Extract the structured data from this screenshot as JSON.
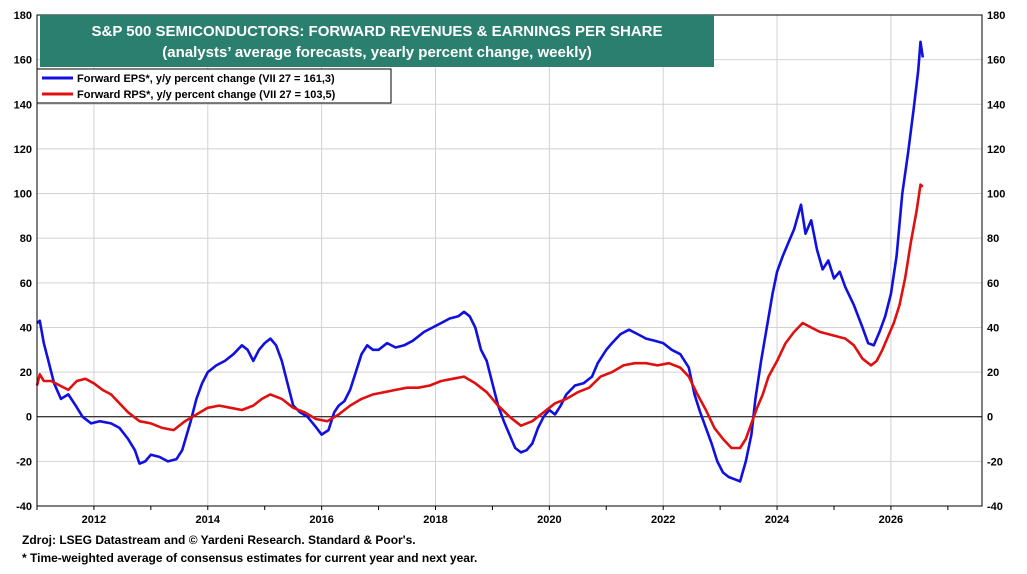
{
  "chart_data": {
    "type": "line",
    "title": "S&P 500 SEMICONDUCTORS: FORWARD REVENUES & EARNINGS PER SHARE",
    "subtitle": "(analysts’ average forecasts, yearly percent change, weekly)",
    "title_bg_color": "#2a7f6e",
    "xlim": [
      2011.0,
      2027.6
    ],
    "ylim": [
      -40,
      180
    ],
    "x_ticks": [
      2012,
      2014,
      2016,
      2018,
      2020,
      2022,
      2024,
      2026
    ],
    "x_tick_labels": [
      "2012",
      "2014",
      "2016",
      "2018",
      "2020",
      "2022",
      "2024",
      "2026"
    ],
    "y_ticks": [
      -40,
      -20,
      0,
      20,
      40,
      60,
      80,
      100,
      120,
      140,
      160,
      180
    ],
    "y_tick_labels": [
      "-40",
      "-20",
      "0",
      "20",
      "40",
      "60",
      "80",
      "100",
      "120",
      "140",
      "160",
      "180"
    ],
    "grid": true,
    "legend_position": "top-left",
    "series": [
      {
        "name": "Forward EPS*, y/y percent change (VII 27 = 161,3)",
        "color": "#1010e0",
        "points": [
          [
            2011.0,
            42
          ],
          [
            2011.05,
            43
          ],
          [
            2011.12,
            33
          ],
          [
            2011.2,
            25
          ],
          [
            2011.3,
            15
          ],
          [
            2011.42,
            8
          ],
          [
            2011.55,
            10
          ],
          [
            2011.68,
            5
          ],
          [
            2011.8,
            0
          ],
          [
            2011.95,
            -3
          ],
          [
            2012.1,
            -2
          ],
          [
            2012.3,
            -3
          ],
          [
            2012.45,
            -5
          ],
          [
            2012.6,
            -10
          ],
          [
            2012.72,
            -15
          ],
          [
            2012.8,
            -21
          ],
          [
            2012.9,
            -20
          ],
          [
            2013.0,
            -17
          ],
          [
            2013.15,
            -18
          ],
          [
            2013.3,
            -20
          ],
          [
            2013.45,
            -19
          ],
          [
            2013.55,
            -15
          ],
          [
            2013.7,
            -2
          ],
          [
            2013.8,
            8
          ],
          [
            2013.9,
            15
          ],
          [
            2014.0,
            20
          ],
          [
            2014.15,
            23
          ],
          [
            2014.3,
            25
          ],
          [
            2014.45,
            28
          ],
          [
            2014.6,
            32
          ],
          [
            2014.7,
            30
          ],
          [
            2014.8,
            25
          ],
          [
            2014.9,
            30
          ],
          [
            2015.0,
            33
          ],
          [
            2015.1,
            35
          ],
          [
            2015.2,
            32
          ],
          [
            2015.3,
            25
          ],
          [
            2015.4,
            15
          ],
          [
            2015.5,
            5
          ],
          [
            2015.62,
            2
          ],
          [
            2015.75,
            0
          ],
          [
            2015.88,
            -4
          ],
          [
            2016.0,
            -8
          ],
          [
            2016.12,
            -6
          ],
          [
            2016.22,
            2
          ],
          [
            2016.3,
            5
          ],
          [
            2016.4,
            7
          ],
          [
            2016.5,
            12
          ],
          [
            2016.6,
            20
          ],
          [
            2016.7,
            28
          ],
          [
            2016.8,
            32
          ],
          [
            2016.9,
            30
          ],
          [
            2017.0,
            30
          ],
          [
            2017.15,
            33
          ],
          [
            2017.3,
            31
          ],
          [
            2017.45,
            32
          ],
          [
            2017.6,
            34
          ],
          [
            2017.8,
            38
          ],
          [
            2017.95,
            40
          ],
          [
            2018.1,
            42
          ],
          [
            2018.25,
            44
          ],
          [
            2018.4,
            45
          ],
          [
            2018.5,
            47
          ],
          [
            2018.6,
            45
          ],
          [
            2018.7,
            40
          ],
          [
            2018.8,
            30
          ],
          [
            2018.9,
            25
          ],
          [
            2019.0,
            15
          ],
          [
            2019.1,
            5
          ],
          [
            2019.2,
            -2
          ],
          [
            2019.3,
            -8
          ],
          [
            2019.4,
            -14
          ],
          [
            2019.5,
            -16
          ],
          [
            2019.6,
            -15
          ],
          [
            2019.7,
            -12
          ],
          [
            2019.8,
            -5
          ],
          [
            2019.9,
            0
          ],
          [
            2020.0,
            3
          ],
          [
            2020.1,
            1
          ],
          [
            2020.2,
            5
          ],
          [
            2020.3,
            10
          ],
          [
            2020.45,
            14
          ],
          [
            2020.6,
            15
          ],
          [
            2020.75,
            18
          ],
          [
            2020.85,
            24
          ],
          [
            2021.0,
            30
          ],
          [
            2021.1,
            33
          ],
          [
            2021.25,
            37
          ],
          [
            2021.4,
            39
          ],
          [
            2021.55,
            37
          ],
          [
            2021.7,
            35
          ],
          [
            2021.85,
            34
          ],
          [
            2022.0,
            33
          ],
          [
            2022.15,
            30
          ],
          [
            2022.3,
            28
          ],
          [
            2022.45,
            22
          ],
          [
            2022.55,
            10
          ],
          [
            2022.65,
            2
          ],
          [
            2022.75,
            -5
          ],
          [
            2022.85,
            -12
          ],
          [
            2022.95,
            -20
          ],
          [
            2023.05,
            -25
          ],
          [
            2023.15,
            -27
          ],
          [
            2023.25,
            -28
          ],
          [
            2023.35,
            -29
          ],
          [
            2023.45,
            -20
          ],
          [
            2023.55,
            -8
          ],
          [
            2023.62,
            8
          ],
          [
            2023.72,
            25
          ],
          [
            2023.82,
            40
          ],
          [
            2023.92,
            55
          ],
          [
            2024.0,
            65
          ],
          [
            2024.1,
            72
          ],
          [
            2024.2,
            78
          ],
          [
            2024.3,
            84
          ],
          [
            2024.42,
            95
          ],
          [
            2024.5,
            82
          ],
          [
            2024.6,
            88
          ],
          [
            2024.7,
            75
          ],
          [
            2024.8,
            66
          ],
          [
            2024.9,
            70
          ],
          [
            2025.0,
            62
          ],
          [
            2025.1,
            65
          ],
          [
            2025.2,
            58
          ],
          [
            2025.35,
            50
          ],
          [
            2025.5,
            40
          ],
          [
            2025.6,
            33
          ],
          [
            2025.7,
            32
          ],
          [
            2025.8,
            38
          ],
          [
            2025.9,
            45
          ],
          [
            2026.0,
            55
          ],
          [
            2026.1,
            72
          ],
          [
            2026.2,
            100
          ],
          [
            2026.3,
            118
          ],
          [
            2026.4,
            138
          ],
          [
            2026.48,
            155
          ],
          [
            2026.52,
            168
          ],
          [
            2026.56,
            161
          ]
        ]
      },
      {
        "name": "Forward RPS*, y/y percent change (VII 27 = 103,5)",
        "color": "#e01010",
        "points": [
          [
            2011.0,
            14
          ],
          [
            2011.05,
            19
          ],
          [
            2011.12,
            16
          ],
          [
            2011.25,
            16
          ],
          [
            2011.4,
            14
          ],
          [
            2011.55,
            12
          ],
          [
            2011.7,
            16
          ],
          [
            2011.85,
            17
          ],
          [
            2012.0,
            15
          ],
          [
            2012.15,
            12
          ],
          [
            2012.3,
            10
          ],
          [
            2012.45,
            6
          ],
          [
            2012.6,
            2
          ],
          [
            2012.8,
            -2
          ],
          [
            2013.0,
            -3
          ],
          [
            2013.2,
            -5
          ],
          [
            2013.4,
            -6
          ],
          [
            2013.6,
            -2
          ],
          [
            2013.8,
            1
          ],
          [
            2014.0,
            4
          ],
          [
            2014.2,
            5
          ],
          [
            2014.4,
            4
          ],
          [
            2014.6,
            3
          ],
          [
            2014.8,
            5
          ],
          [
            2014.95,
            8
          ],
          [
            2015.1,
            10
          ],
          [
            2015.3,
            8
          ],
          [
            2015.5,
            4
          ],
          [
            2015.7,
            2
          ],
          [
            2015.9,
            -1
          ],
          [
            2016.1,
            -2
          ],
          [
            2016.3,
            1
          ],
          [
            2016.5,
            5
          ],
          [
            2016.7,
            8
          ],
          [
            2016.9,
            10
          ],
          [
            2017.1,
            11
          ],
          [
            2017.3,
            12
          ],
          [
            2017.5,
            13
          ],
          [
            2017.7,
            13
          ],
          [
            2017.9,
            14
          ],
          [
            2018.1,
            16
          ],
          [
            2018.3,
            17
          ],
          [
            2018.5,
            18
          ],
          [
            2018.7,
            15
          ],
          [
            2018.9,
            11
          ],
          [
            2019.1,
            5
          ],
          [
            2019.3,
            0
          ],
          [
            2019.5,
            -4
          ],
          [
            2019.7,
            -2
          ],
          [
            2019.9,
            2
          ],
          [
            2020.1,
            6
          ],
          [
            2020.3,
            8
          ],
          [
            2020.5,
            11
          ],
          [
            2020.7,
            13
          ],
          [
            2020.9,
            18
          ],
          [
            2021.1,
            20
          ],
          [
            2021.3,
            23
          ],
          [
            2021.5,
            24
          ],
          [
            2021.7,
            24
          ],
          [
            2021.9,
            23
          ],
          [
            2022.1,
            24
          ],
          [
            2022.3,
            22
          ],
          [
            2022.45,
            18
          ],
          [
            2022.6,
            10
          ],
          [
            2022.75,
            3
          ],
          [
            2022.9,
            -5
          ],
          [
            2023.05,
            -10
          ],
          [
            2023.2,
            -14
          ],
          [
            2023.35,
            -14
          ],
          [
            2023.45,
            -10
          ],
          [
            2023.55,
            -3
          ],
          [
            2023.65,
            4
          ],
          [
            2023.75,
            10
          ],
          [
            2023.85,
            18
          ],
          [
            2024.0,
            25
          ],
          [
            2024.15,
            33
          ],
          [
            2024.3,
            38
          ],
          [
            2024.45,
            42
          ],
          [
            2024.6,
            40
          ],
          [
            2024.75,
            38
          ],
          [
            2024.9,
            37
          ],
          [
            2025.05,
            36
          ],
          [
            2025.2,
            35
          ],
          [
            2025.35,
            32
          ],
          [
            2025.5,
            26
          ],
          [
            2025.65,
            23
          ],
          [
            2025.75,
            25
          ],
          [
            2025.85,
            30
          ],
          [
            2025.95,
            36
          ],
          [
            2026.05,
            42
          ],
          [
            2026.15,
            50
          ],
          [
            2026.25,
            62
          ],
          [
            2026.35,
            78
          ],
          [
            2026.45,
            92
          ],
          [
            2026.52,
            104
          ],
          [
            2026.56,
            103
          ]
        ]
      }
    ]
  },
  "footer": {
    "source": "Zdroj: LSEG Datastream and © Yardeni Research. Standard & Poor's.",
    "note": "* Time-weighted average of consensus estimates for current year and next year."
  }
}
